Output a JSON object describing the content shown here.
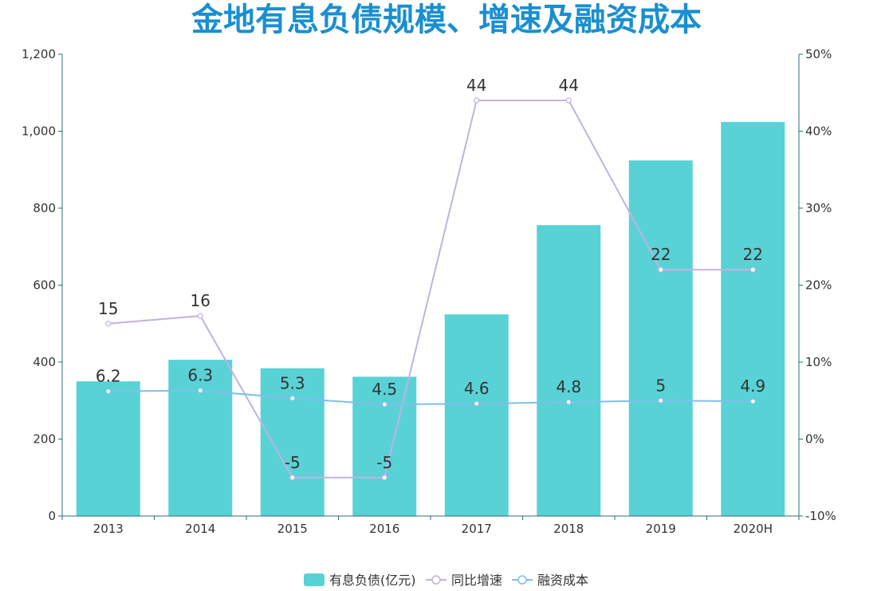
{
  "title": "金地有息负债规模、增速及融资成本",
  "colors": {
    "bar": "#59d2d6",
    "growth": "#c2b2e0",
    "cost": "#7fbfea",
    "axis": "#2c6e7e",
    "title": "#1a8fd0"
  },
  "chart_data": {
    "type": "bar",
    "title": "金地有息负债规模、增速及融资成本",
    "categories": [
      "2013",
      "2014",
      "2015",
      "2016",
      "2017",
      "2018",
      "2019",
      "2020H"
    ],
    "y_left": {
      "range": [
        0,
        1200
      ],
      "ticks": [
        "0",
        "200",
        "400",
        "600",
        "800",
        "1,000",
        "1,200"
      ]
    },
    "y_right": {
      "range": [
        -10,
        50
      ],
      "ticks": [
        "-10%",
        "0%",
        "10%",
        "20%",
        "30%",
        "40%",
        "50%"
      ]
    },
    "series": [
      {
        "name": "有息负债(亿元)",
        "type": "bar",
        "axis": "left",
        "values": [
          350,
          406,
          384,
          362,
          524,
          756,
          924,
          1024
        ]
      },
      {
        "name": "同比增速",
        "type": "line",
        "axis": "right",
        "values": [
          15,
          16,
          -5,
          -5,
          44,
          44,
          22,
          22
        ],
        "labels": [
          "15",
          "16",
          "-5",
          "-5",
          "44",
          "44",
          "22",
          "22"
        ]
      },
      {
        "name": "融资成本",
        "type": "line",
        "axis": "right",
        "values": [
          6.2,
          6.3,
          5.3,
          4.5,
          4.6,
          4.8,
          5,
          4.9
        ],
        "labels": [
          "6.2",
          "6.3",
          "5.3",
          "4.5",
          "4.6",
          "4.8",
          "5",
          "4.9"
        ]
      }
    ],
    "legend": "bottom",
    "grid": false
  }
}
